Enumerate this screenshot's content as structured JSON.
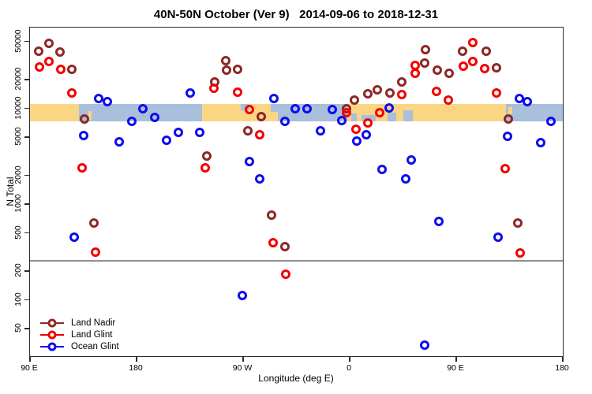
{
  "chart_data": {
    "type": "scatter",
    "title": "40N-50N October (Ver 9)   2014-09-06 to 2018-12-31",
    "xlabel": "Longitude (deg E)",
    "ylabel": "N Total",
    "y_scale": "log10",
    "grid": false,
    "xlim": [
      90,
      540
    ],
    "ylim": [
      26,
      70000
    ],
    "x_ticks": [
      {
        "pos": 90,
        "label": "90 E"
      },
      {
        "pos": 180,
        "label": "180"
      },
      {
        "pos": 270,
        "label": "90 W"
      },
      {
        "pos": 360,
        "label": "0"
      },
      {
        "pos": 450,
        "label": "90 E"
      },
      {
        "pos": 540,
        "label": "180"
      }
    ],
    "y_ticks": [
      50,
      100,
      200,
      500,
      1000,
      2000,
      5000,
      10000,
      20000,
      50000
    ],
    "reference_line": {
      "value": 260,
      "color": "#8f8f8f"
    },
    "land_ocean_band": {
      "description": "map strip of 40N-50N latitude band: land vs ocean by longitude",
      "value_top": 11150,
      "value_bottom": 7350,
      "land_color": "#FAD584",
      "ocean_color": "#A9BFDB",
      "segments": [
        {
          "from": 90,
          "to": 131.5,
          "type": "land"
        },
        {
          "from": 131.5,
          "to": 235,
          "type": "ocean"
        },
        {
          "from": 235,
          "to": 299,
          "type": "land"
        },
        {
          "from": 299,
          "to": 358,
          "type": "ocean"
        },
        {
          "from": 358,
          "to": 492,
          "type": "land"
        },
        {
          "from": 492,
          "to": 540,
          "type": "ocean"
        }
      ],
      "patches": [
        {
          "from": 139,
          "to": 142,
          "type": "land",
          "y0": 0.4,
          "y1": 0.9
        },
        {
          "from": 268,
          "to": 275,
          "type": "ocean",
          "y0": 0.0,
          "y1": 0.35
        },
        {
          "from": 293,
          "to": 301,
          "type": "ocean",
          "y0": 0.0,
          "y1": 0.45
        },
        {
          "from": 361,
          "to": 366,
          "type": "ocean",
          "y0": 0.55,
          "y1": 1.0
        },
        {
          "from": 370,
          "to": 382,
          "type": "ocean",
          "y0": 0.65,
          "y1": 1.0
        },
        {
          "from": 392,
          "to": 399,
          "type": "ocean",
          "y0": 0.5,
          "y1": 1.0
        },
        {
          "from": 405,
          "to": 413,
          "type": "ocean",
          "y0": 0.35,
          "y1": 1.0
        },
        {
          "from": 494,
          "to": 497,
          "type": "land",
          "y0": 0.2,
          "y1": 0.6
        }
      ]
    },
    "series": [
      {
        "name": "Land Nadir",
        "color": "#8E2727",
        "points": [
          [
            97,
            40000
          ],
          [
            106,
            47500
          ],
          [
            115,
            39000
          ],
          [
            125,
            25500
          ],
          [
            136,
            7800
          ],
          [
            144,
            640
          ],
          [
            239,
            3200
          ],
          [
            246,
            19000
          ],
          [
            255,
            31500
          ],
          [
            256,
            25000
          ],
          [
            265,
            25500
          ],
          [
            274,
            5800
          ],
          [
            285,
            8200
          ],
          [
            294,
            770
          ],
          [
            305,
            360
          ],
          [
            357,
            9900
          ],
          [
            364,
            12200
          ],
          [
            375,
            14200
          ],
          [
            383,
            15800
          ],
          [
            394,
            14500
          ],
          [
            404,
            19000
          ],
          [
            423,
            30000
          ],
          [
            424,
            41500
          ],
          [
            434,
            25000
          ],
          [
            444,
            23500
          ],
          [
            455,
            40000
          ],
          [
            475,
            40000
          ],
          [
            484,
            26500
          ],
          [
            494,
            7800
          ],
          [
            502,
            640
          ]
        ]
      },
      {
        "name": "Land Glint",
        "color": "#F40000",
        "points": [
          [
            98,
            27000
          ],
          [
            106,
            31000
          ],
          [
            116,
            25500
          ],
          [
            125,
            14400
          ],
          [
            134,
            2400
          ],
          [
            145,
            315
          ],
          [
            238,
            2400
          ],
          [
            245,
            16300
          ],
          [
            265,
            14700
          ],
          [
            275,
            9800
          ],
          [
            284,
            5350
          ],
          [
            295,
            400
          ],
          [
            306,
            187
          ],
          [
            357,
            9000
          ],
          [
            365,
            6100
          ],
          [
            375,
            7100
          ],
          [
            385,
            9100
          ],
          [
            404,
            13900
          ],
          [
            415,
            28000
          ],
          [
            415,
            23500
          ],
          [
            433,
            15000
          ],
          [
            443,
            12300
          ],
          [
            456,
            27500
          ],
          [
            464,
            49000
          ],
          [
            464,
            31000
          ],
          [
            474,
            26000
          ],
          [
            484,
            14500
          ],
          [
            491,
            2350
          ],
          [
            504,
            310
          ]
        ]
      },
      {
        "name": "Ocean Glint",
        "color": "#0D0DEF",
        "points": [
          [
            127,
            455
          ],
          [
            135,
            5200
          ],
          [
            148,
            12700
          ],
          [
            155,
            11700
          ],
          [
            165,
            4500
          ],
          [
            176,
            7400
          ],
          [
            185,
            10000
          ],
          [
            195,
            8100
          ],
          [
            205,
            4650
          ],
          [
            215,
            5600
          ],
          [
            225,
            14400
          ],
          [
            233,
            5600
          ],
          [
            269,
            111
          ],
          [
            275,
            2800
          ],
          [
            284,
            1850
          ],
          [
            296,
            12700
          ],
          [
            305,
            7400
          ],
          [
            314,
            9900
          ],
          [
            324,
            9900
          ],
          [
            335,
            5800
          ],
          [
            345,
            9700
          ],
          [
            353,
            7500
          ],
          [
            366,
            4550
          ],
          [
            374,
            5300
          ],
          [
            387,
            2300
          ],
          [
            393,
            10200
          ],
          [
            407,
            1850
          ],
          [
            412,
            2900
          ],
          [
            423,
            34
          ],
          [
            435,
            665
          ],
          [
            485,
            455
          ],
          [
            493,
            5150
          ],
          [
            503,
            12700
          ],
          [
            510,
            11700
          ],
          [
            521,
            4400
          ],
          [
            530,
            7350
          ]
        ]
      }
    ],
    "legend": {
      "position": "bottom-left-inside",
      "entries": [
        "Land Nadir",
        "Land Glint",
        "Ocean Glint"
      ]
    }
  }
}
